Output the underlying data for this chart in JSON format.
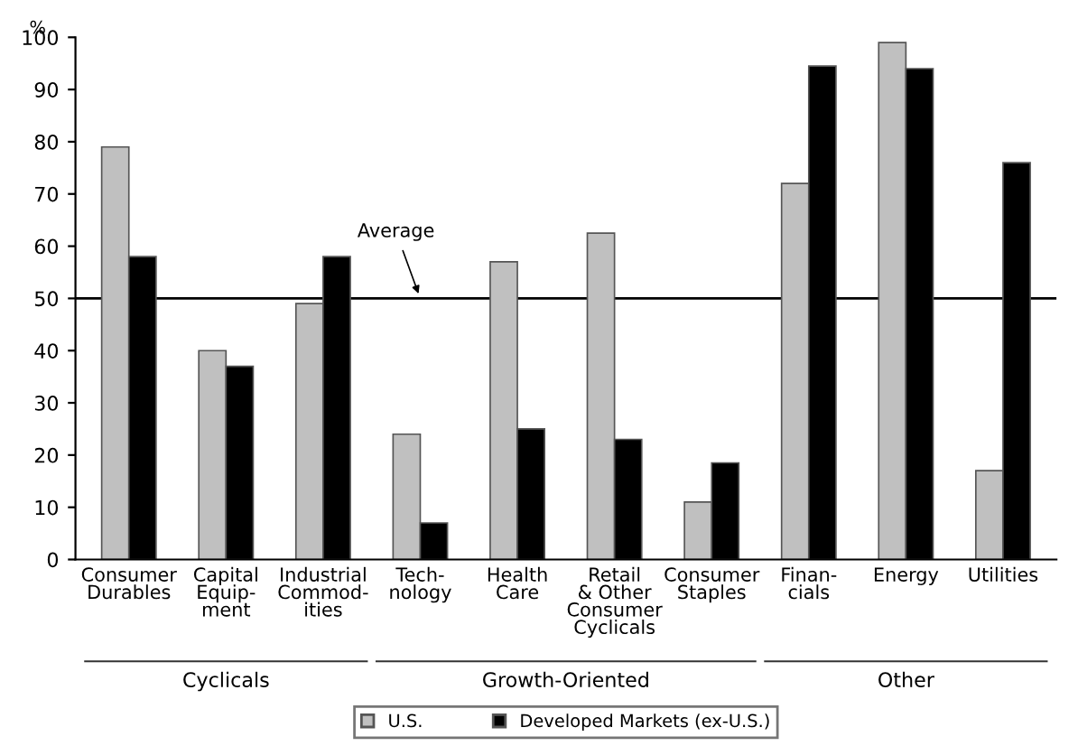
{
  "chart_data": {
    "type": "bar",
    "ylabel": "%",
    "categories": [
      "Consumer\nDurables",
      "Capital\nEquip-\nment",
      "Industrial\nCommod-\nities",
      "Tech-\nnology",
      "Health\nCare",
      "Retail\n& Other\nConsumer\nCyclicals",
      "Consumer\nStaples",
      "Finan-\ncials",
      "Energy",
      "Utilities"
    ],
    "series": [
      {
        "name": "U.S.",
        "color": "#c0c0c0",
        "values": [
          79,
          40,
          49,
          24,
          57,
          62.5,
          11,
          72,
          99,
          17
        ]
      },
      {
        "name": "Developed Markets (ex-U.S.)",
        "color": "#000000",
        "values": [
          58,
          37,
          58,
          7,
          25,
          23,
          18.5,
          94.5,
          94,
          76
        ]
      }
    ],
    "ylim": [
      0,
      100
    ],
    "yticks": [
      0,
      10,
      20,
      30,
      40,
      50,
      60,
      70,
      80,
      90,
      100
    ],
    "ref_lines": [
      {
        "axis": "y",
        "value": 50,
        "label": "Average",
        "color": "#000000"
      }
    ],
    "annotations": [
      "Cyclicals",
      "Growth-Oriented",
      "Other"
    ],
    "legend": "bottom",
    "grid": false
  }
}
